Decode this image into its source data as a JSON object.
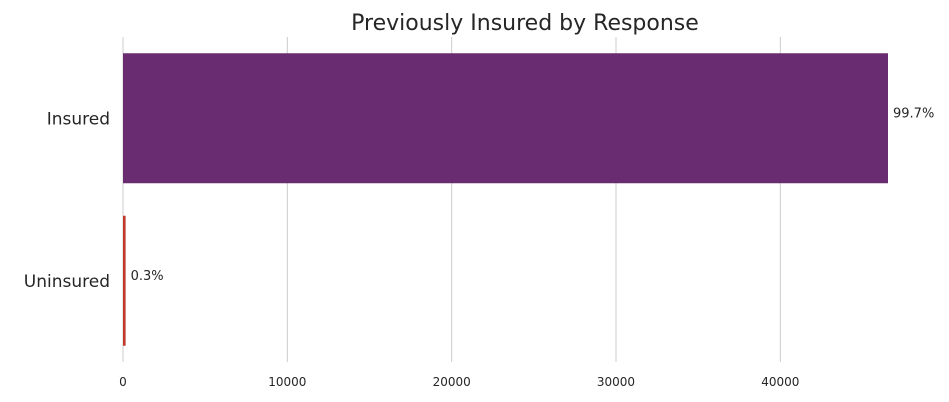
{
  "chart_data": {
    "type": "bar",
    "orientation": "horizontal",
    "title": "Previously Insured by Response",
    "xlabel": "",
    "ylabel": "",
    "categories": [
      "Insured",
      "Uninsured"
    ],
    "values": [
      46552,
      158
    ],
    "data_labels": [
      "99.7%",
      "0.3%"
    ],
    "colors": [
      "#6a2c70",
      "#c0392b"
    ],
    "xlim": [
      0,
      46552
    ],
    "xticks": [
      0,
      10000,
      20000,
      30000,
      40000
    ],
    "xtick_labels": [
      "0",
      "10000",
      "20000",
      "30000",
      "40000"
    ],
    "grid": "vertical"
  }
}
